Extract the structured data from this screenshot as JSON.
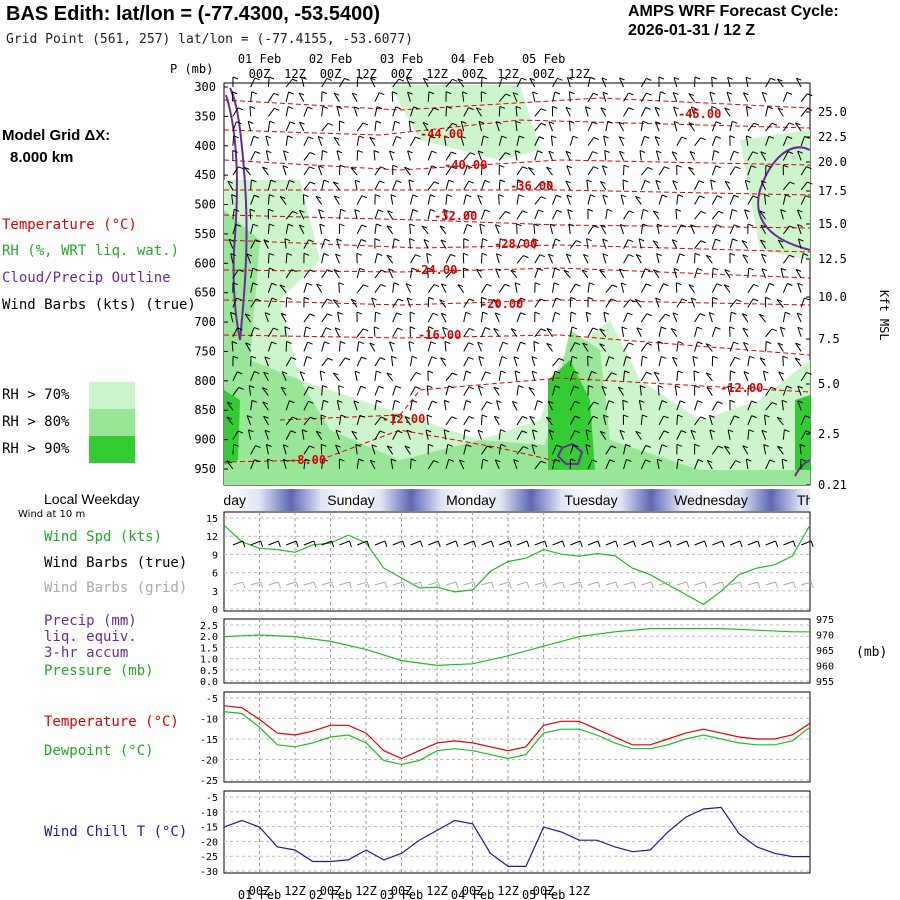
{
  "header": {
    "title": "BAS Edith:  lat/lon = (-77.4300, -53.5400)",
    "grid_point": "Grid Point (561, 257) lat/lon = (-77.4155, -53.6077)",
    "cycle_line1": "AMPS WRF Forecast Cycle:",
    "cycle_line2": "2026-01-31 / 12  Z"
  },
  "time_axis": {
    "hours": [
      "00Z",
      "12Z",
      "00Z",
      "12Z",
      "00Z",
      "12Z",
      "00Z",
      "12Z",
      "00Z",
      "12Z"
    ],
    "dates": [
      "01 Feb",
      "02 Feb",
      "03 Feb",
      "04 Feb",
      "05 Feb"
    ]
  },
  "upper_panel": {
    "p_label": "P (mb)",
    "pressure_ticks": [
      "300",
      "350",
      "400",
      "450",
      "500",
      "550",
      "600",
      "650",
      "700",
      "750",
      "800",
      "850",
      "900",
      "950"
    ],
    "height_ticks": [
      "25.0",
      "22.5",
      "20.0",
      "17.5",
      "15.0",
      "12.5",
      "10.0",
      "7.5",
      "5.0",
      "2.5",
      "0.21"
    ],
    "height_axis_label": "Kft MSL",
    "model_grid_label": "Model Grid ΔX:",
    "model_grid_value": "8.000 km",
    "legend": {
      "temperature": "Temperature (°C)",
      "rh": "RH (%, WRT liq. wat.)",
      "cloud": "Cloud/Precip Outline",
      "wind": "Wind Barbs (kts) (true)"
    },
    "rh_levels": [
      {
        "label": "RH > 70%",
        "color": "#ccf5cc"
      },
      {
        "label": "RH > 80%",
        "color": "#99e699"
      },
      {
        "label": "RH > 90%",
        "color": "#33cc33"
      }
    ],
    "temp_labels": [
      "-45.00",
      "-44.00",
      "-40.00",
      "-36.00",
      "-32.00",
      "-28.00",
      "-24.00",
      "-20.00",
      "-16.00",
      "-12.00",
      "-12.00",
      "-8.00"
    ],
    "colors": {
      "temperature": "#e00000",
      "cloud": "#6a2a9a",
      "rh70": "#ccf5cc",
      "rh80": "#99e699",
      "rh90": "#33cc33"
    }
  },
  "weekday_strip": {
    "title": "Local Weekday",
    "subtitle": "Wind at 10 m",
    "days": [
      "urday",
      "Sunday",
      "Monday",
      "Tuesday",
      "Wednesday",
      "Th"
    ]
  },
  "panels": {
    "wind": {
      "labels": [
        "Wind Spd (kts)",
        "Wind Barbs (true)",
        "Wind Barbs (grid)"
      ],
      "ticks": [
        "15",
        "12",
        "9",
        "6",
        "3",
        "0"
      ]
    },
    "pressure": {
      "labels": [
        "Precip (mm)",
        "liq. equiv.",
        "3-hr accum",
        "Pressure (mb)"
      ],
      "left_ticks": [
        "2.5",
        "2.0",
        "1.5",
        "1.0",
        "0.5",
        "0.0"
      ],
      "right_ticks": [
        "975",
        "970",
        "965",
        "960",
        "955"
      ],
      "right_unit": "(mb)"
    },
    "temperature": {
      "labels": [
        "Temperature (°C)",
        "Dewpoint (°C)"
      ],
      "ticks": [
        "-5",
        "-10",
        "-15",
        "-20",
        "-25"
      ]
    },
    "windchill": {
      "labels": [
        "Wind Chill T (°C)"
      ],
      "ticks": [
        "-5",
        "-10",
        "-15",
        "-20",
        "-25",
        "-30"
      ]
    }
  },
  "chart_data": [
    {
      "type": "line",
      "title": "Wind Spd (kts)",
      "x": [
        0,
        6,
        12,
        18,
        24,
        30,
        36,
        42,
        48,
        54,
        60,
        66,
        72,
        78,
        84,
        90,
        96,
        102,
        108,
        114,
        120,
        126,
        132,
        138,
        144,
        150,
        156,
        162,
        168,
        174,
        180,
        186,
        192,
        198
      ],
      "series": [
        {
          "name": "Wind Spd (kts)",
          "color": "#22bb22",
          "values": [
            13,
            10.5,
            9.5,
            9.3,
            8.9,
            10,
            10.3,
            11.5,
            10.3,
            6.5,
            5,
            3.5,
            3.6,
            2.9,
            3.2,
            6,
            7.5,
            8,
            9.3,
            8.6,
            8.3,
            8.7,
            8.4,
            6.5,
            5.5,
            4,
            2.5,
            1,
            3,
            5.5,
            6.5,
            7,
            8.3,
            13
          ]
        }
      ],
      "ylim": [
        0,
        15
      ]
    },
    {
      "type": "line",
      "title": "Pressure (mb)",
      "x": [
        0,
        12,
        24,
        36,
        48,
        60,
        72,
        84,
        96,
        108,
        120,
        132,
        144,
        156,
        168,
        180,
        192,
        198
      ],
      "series": [
        {
          "name": "Pressure (mb)",
          "color": "#22bb22",
          "values": [
            969.5,
            970,
            969.5,
            968,
            965.5,
            962,
            960.5,
            961,
            963.5,
            966.5,
            969.5,
            971,
            972,
            972,
            972,
            971.5,
            971,
            971
          ]
        }
      ],
      "ylim": [
        955,
        975
      ]
    },
    {
      "type": "line",
      "title": "Temperature / Dewpoint (°C)",
      "x": [
        0,
        6,
        12,
        18,
        24,
        30,
        36,
        42,
        48,
        54,
        60,
        66,
        72,
        78,
        84,
        90,
        96,
        102,
        108,
        114,
        120,
        126,
        132,
        138,
        144,
        150,
        156,
        162,
        168,
        174,
        180,
        186,
        192,
        198
      ],
      "series": [
        {
          "name": "Temperature (°C)",
          "color": "#dd0000",
          "values": [
            -5.5,
            -6,
            -9,
            -12.5,
            -13,
            -12,
            -10.5,
            -10.5,
            -12.5,
            -17,
            -19,
            -17,
            -15,
            -14.5,
            -15,
            -16,
            -17,
            -16,
            -10.5,
            -9.5,
            -9.5,
            -11.5,
            -13.5,
            -15.5,
            -15.5,
            -14,
            -12.5,
            -11.5,
            -12.5,
            -13.5,
            -14,
            -14,
            -13,
            -10
          ]
        },
        {
          "name": "Dewpoint (°C)",
          "color": "#22bb22",
          "values": [
            -7,
            -7.5,
            -11,
            -15.5,
            -16,
            -15,
            -13.5,
            -13,
            -15,
            -19.5,
            -20.5,
            -19.5,
            -17,
            -16.5,
            -17,
            -18,
            -19,
            -18,
            -12.5,
            -11.5,
            -11.5,
            -13,
            -15,
            -16.5,
            -16.5,
            -15.5,
            -14,
            -13,
            -14,
            -15,
            -15.5,
            -15.5,
            -14.5,
            -11
          ]
        }
      ],
      "ylim": [
        -25,
        -2
      ]
    },
    {
      "type": "line",
      "title": "Wind Chill T (°C)",
      "x": [
        0,
        6,
        12,
        18,
        24,
        30,
        36,
        42,
        48,
        54,
        60,
        66,
        72,
        78,
        84,
        90,
        96,
        102,
        108,
        114,
        120,
        126,
        132,
        138,
        144,
        150,
        156,
        162,
        168,
        174,
        180,
        186,
        192,
        198
      ],
      "series": [
        {
          "name": "Wind Chill T (°C)",
          "color": "#1a1aa0",
          "values": [
            -16,
            -14,
            -16,
            -22,
            -23,
            -26.5,
            -26.5,
            -26,
            -23,
            -26,
            -24,
            -20,
            -17,
            -14,
            -15,
            -24,
            -28,
            -28,
            -16,
            -17.5,
            -20,
            -20,
            -22,
            -23.5,
            -23,
            -17.5,
            -13,
            -10.5,
            -10,
            -18,
            -22,
            -24,
            -25,
            -25
          ]
        }
      ],
      "ylim": [
        -30,
        -5
      ]
    }
  ]
}
